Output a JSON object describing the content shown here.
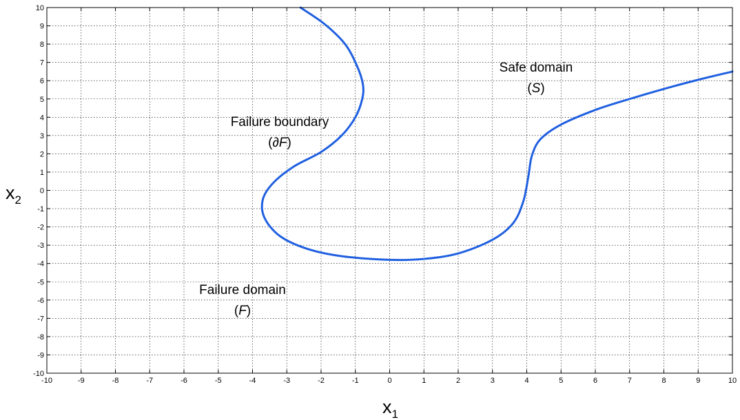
{
  "chart_data": {
    "type": "line",
    "xlim": [
      -10,
      10
    ],
    "ylim": [
      -10,
      10
    ],
    "grid": true,
    "grid_style": "dotted",
    "x_ticks": [
      "-10",
      "-9",
      "-8",
      "-7",
      "-6",
      "-5",
      "-4",
      "-3",
      "-2",
      "-1",
      "0",
      "1",
      "2",
      "3",
      "4",
      "5",
      "6",
      "7",
      "8",
      "9",
      "10"
    ],
    "y_ticks": [
      "10",
      "9",
      "8",
      "7",
      "6",
      "5",
      "4",
      "3",
      "2",
      "1",
      "0",
      "-1",
      "-2",
      "-3",
      "-4",
      "-5",
      "-6",
      "-7",
      "-8",
      "-9",
      "-10"
    ],
    "xlabel": "x",
    "xlabel_sub": "1",
    "ylabel": "x",
    "ylabel_sub": "2",
    "line_color": "#1f5fe0",
    "series": [
      {
        "x": [
          -2.6,
          -1.9,
          -1.3,
          -0.95,
          -0.78,
          -0.8,
          -1.0,
          -1.4,
          -2.0,
          -2.8,
          -3.4,
          -3.7,
          -3.65,
          -3.2,
          -2.4,
          -1.4,
          0.0,
          1.0,
          2.0,
          3.0,
          3.6,
          3.9,
          4.05,
          4.15,
          4.4,
          5.0,
          6.0,
          7.0,
          8.0,
          9.0,
          10.0
        ],
        "y": [
          10.0,
          9.1,
          8.0,
          6.8,
          5.8,
          5.0,
          4.0,
          3.0,
          2.1,
          1.3,
          0.4,
          -0.5,
          -1.5,
          -2.5,
          -3.2,
          -3.6,
          -3.8,
          -3.75,
          -3.45,
          -2.7,
          -1.8,
          -0.6,
          0.8,
          1.9,
          2.8,
          3.6,
          4.4,
          5.0,
          5.55,
          6.05,
          6.5
        ]
      }
    ],
    "annotations": {
      "failure_boundary": {
        "line1": "Failure boundary",
        "line2_pre": "(",
        "line2_sym": "∂F",
        "line2_post": ")"
      },
      "safe_domain": {
        "line1": "Safe domain",
        "line2_pre": "(",
        "line2_sym": "S",
        "line2_post": ")"
      },
      "failure_domain": {
        "line1": "Failure domain",
        "line2_pre": "(",
        "line2_sym": "F",
        "line2_post": ")"
      }
    }
  }
}
